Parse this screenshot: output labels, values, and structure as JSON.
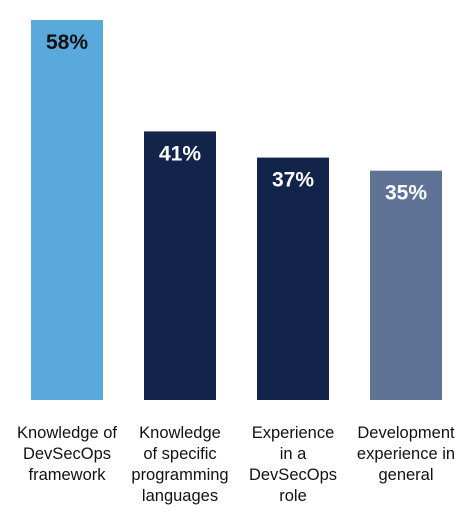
{
  "chart_data": {
    "type": "bar",
    "categories": [
      "Knowledge of DevSecOps framework",
      "Knowledge of specific programming languages",
      "Experience in a DevSecOps role",
      "Development experience in general"
    ],
    "category_lines": [
      [
        "Knowledge of",
        "DevSecOps",
        "framework"
      ],
      [
        "Knowledge",
        "of specific",
        "programming",
        "languages"
      ],
      [
        "Experience",
        "in a",
        "DevSecOps",
        "role"
      ],
      [
        "Development",
        "experience in",
        "general"
      ]
    ],
    "values": [
      58,
      41,
      37,
      35
    ],
    "value_labels": [
      "58%",
      "41%",
      "37%",
      "35%"
    ],
    "bar_colors": [
      "#5AA9DC",
      "#13244B",
      "#13244B",
      "#5F7396"
    ],
    "value_label_colors": [
      "#111111",
      "#ffffff",
      "#ffffff",
      "#ffffff"
    ],
    "ylim": [
      0,
      60
    ],
    "grid": false,
    "axes_visible": false
  }
}
